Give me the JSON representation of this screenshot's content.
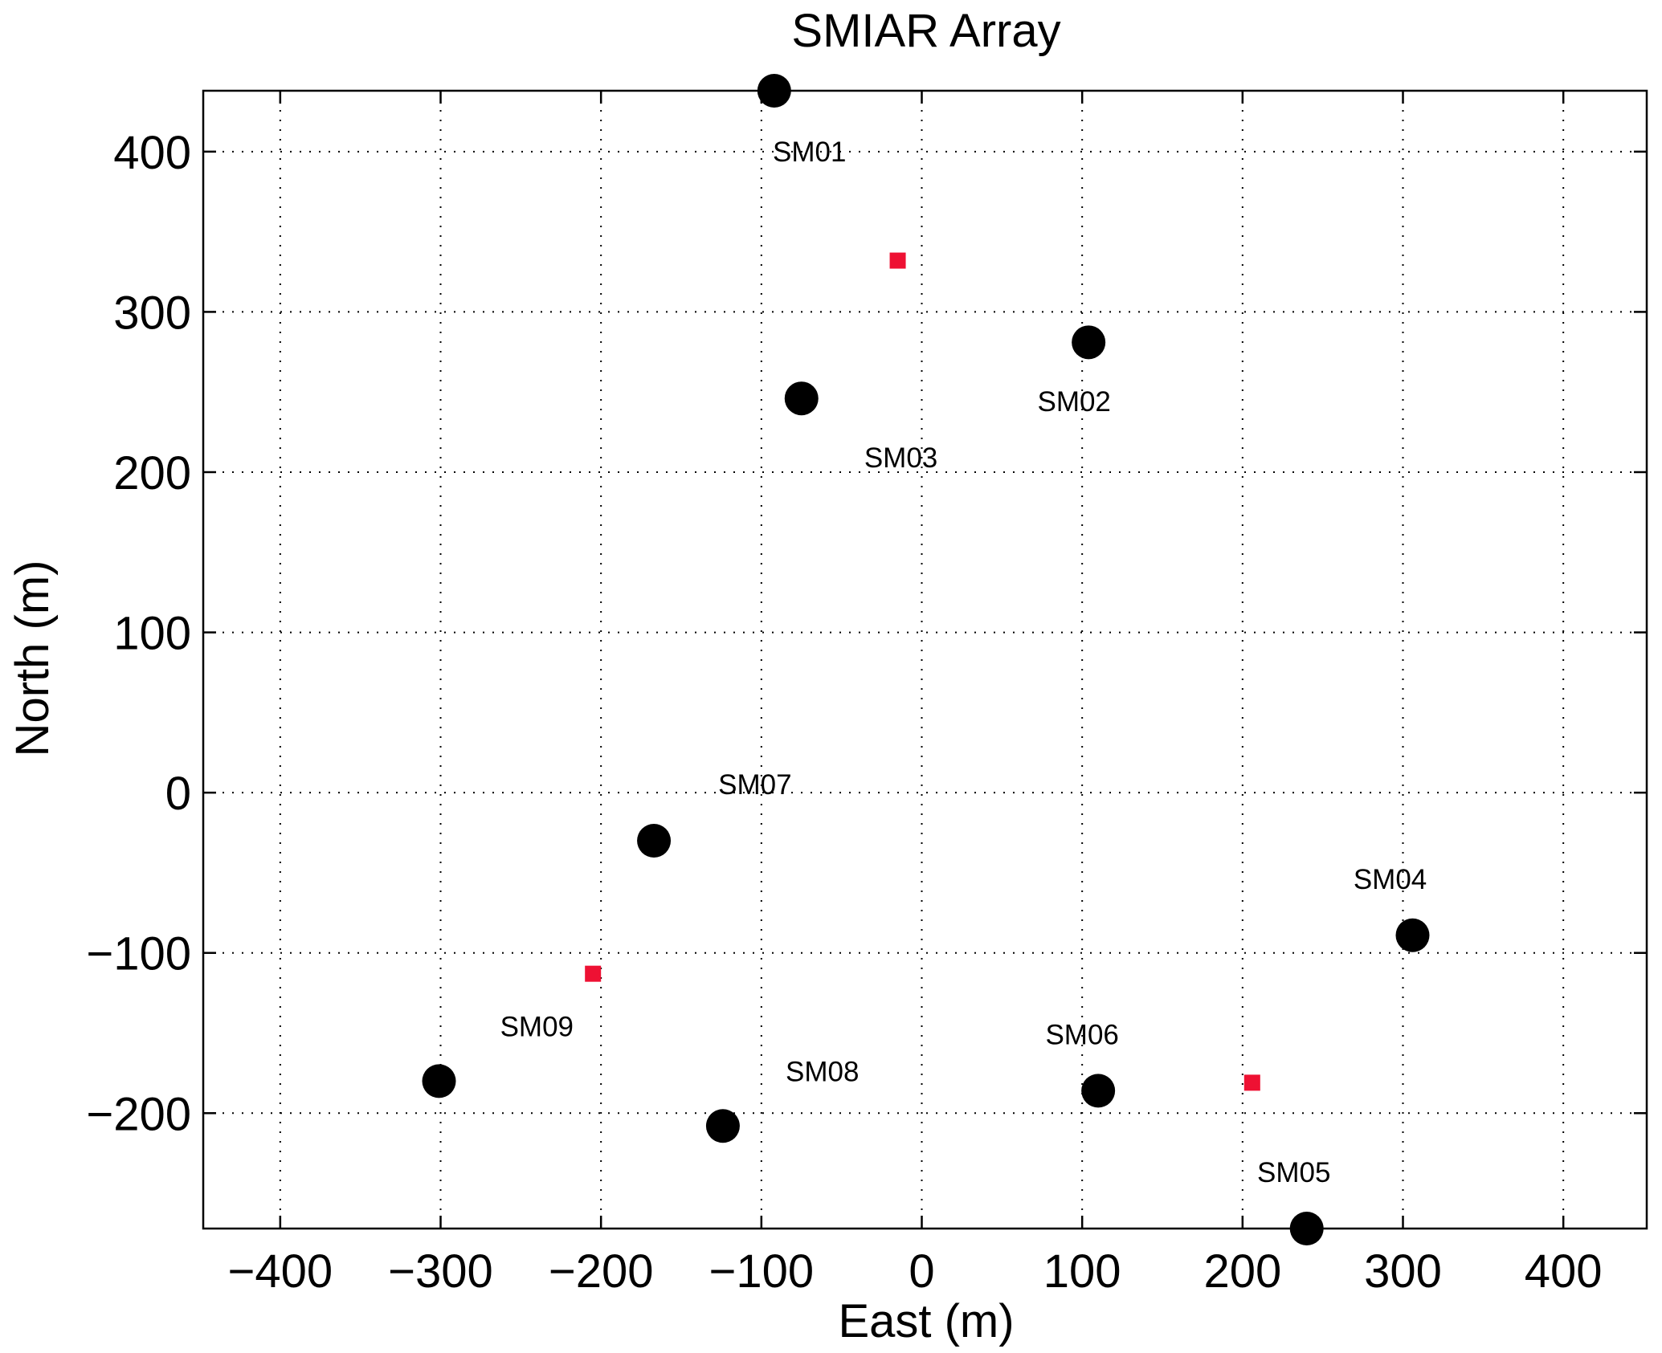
{
  "chart_data": {
    "type": "scatter",
    "title": "SMIAR Array",
    "xlabel": "East (m)",
    "ylabel": "North (m)",
    "xlim": [
      -448,
      452
    ],
    "ylim": [
      -272,
      438
    ],
    "xticks": [
      -400,
      -300,
      -200,
      -100,
      0,
      100,
      200,
      300,
      400
    ],
    "yticks": [
      -200,
      -100,
      0,
      100,
      200,
      300,
      400
    ],
    "xtick_labels": [
      "−400",
      "−300",
      "−200",
      "−100",
      "0",
      "100",
      "200",
      "300",
      "400"
    ],
    "ytick_labels": [
      "−200",
      "−100",
      "0",
      "100",
      "200",
      "300",
      "400"
    ],
    "grid": true,
    "colors": {
      "stations": "#000000",
      "markers": "#ee1133"
    },
    "stations": [
      {
        "label": "SM01",
        "x": -92,
        "y": 438,
        "label_x": -70,
        "label_y": 400
      },
      {
        "label": "SM02",
        "x": 104,
        "y": 281,
        "label_x": 95,
        "label_y": 244
      },
      {
        "label": "SM03",
        "x": -75,
        "y": 246,
        "label_x": -13,
        "label_y": 209
      },
      {
        "label": "SM04",
        "x": 306,
        "y": -89,
        "label_x": 292,
        "label_y": -54
      },
      {
        "label": "SM05",
        "x": 240,
        "y": -272,
        "label_x": 232,
        "label_y": -237
      },
      {
        "label": "SM06",
        "x": 110,
        "y": -186,
        "label_x": 100,
        "label_y": -151
      },
      {
        "label": "SM07",
        "x": -167,
        "y": -30,
        "label_x": -104,
        "label_y": 5
      },
      {
        "label": "SM08",
        "x": -124,
        "y": -208,
        "label_x": -62,
        "label_y": -174
      },
      {
        "label": "SM09",
        "x": -301,
        "y": -180,
        "label_x": -240,
        "label_y": -146
      }
    ],
    "markers": [
      {
        "x": -15,
        "y": 332
      },
      {
        "x": -205,
        "y": -113
      },
      {
        "x": 206,
        "y": -181
      }
    ]
  }
}
